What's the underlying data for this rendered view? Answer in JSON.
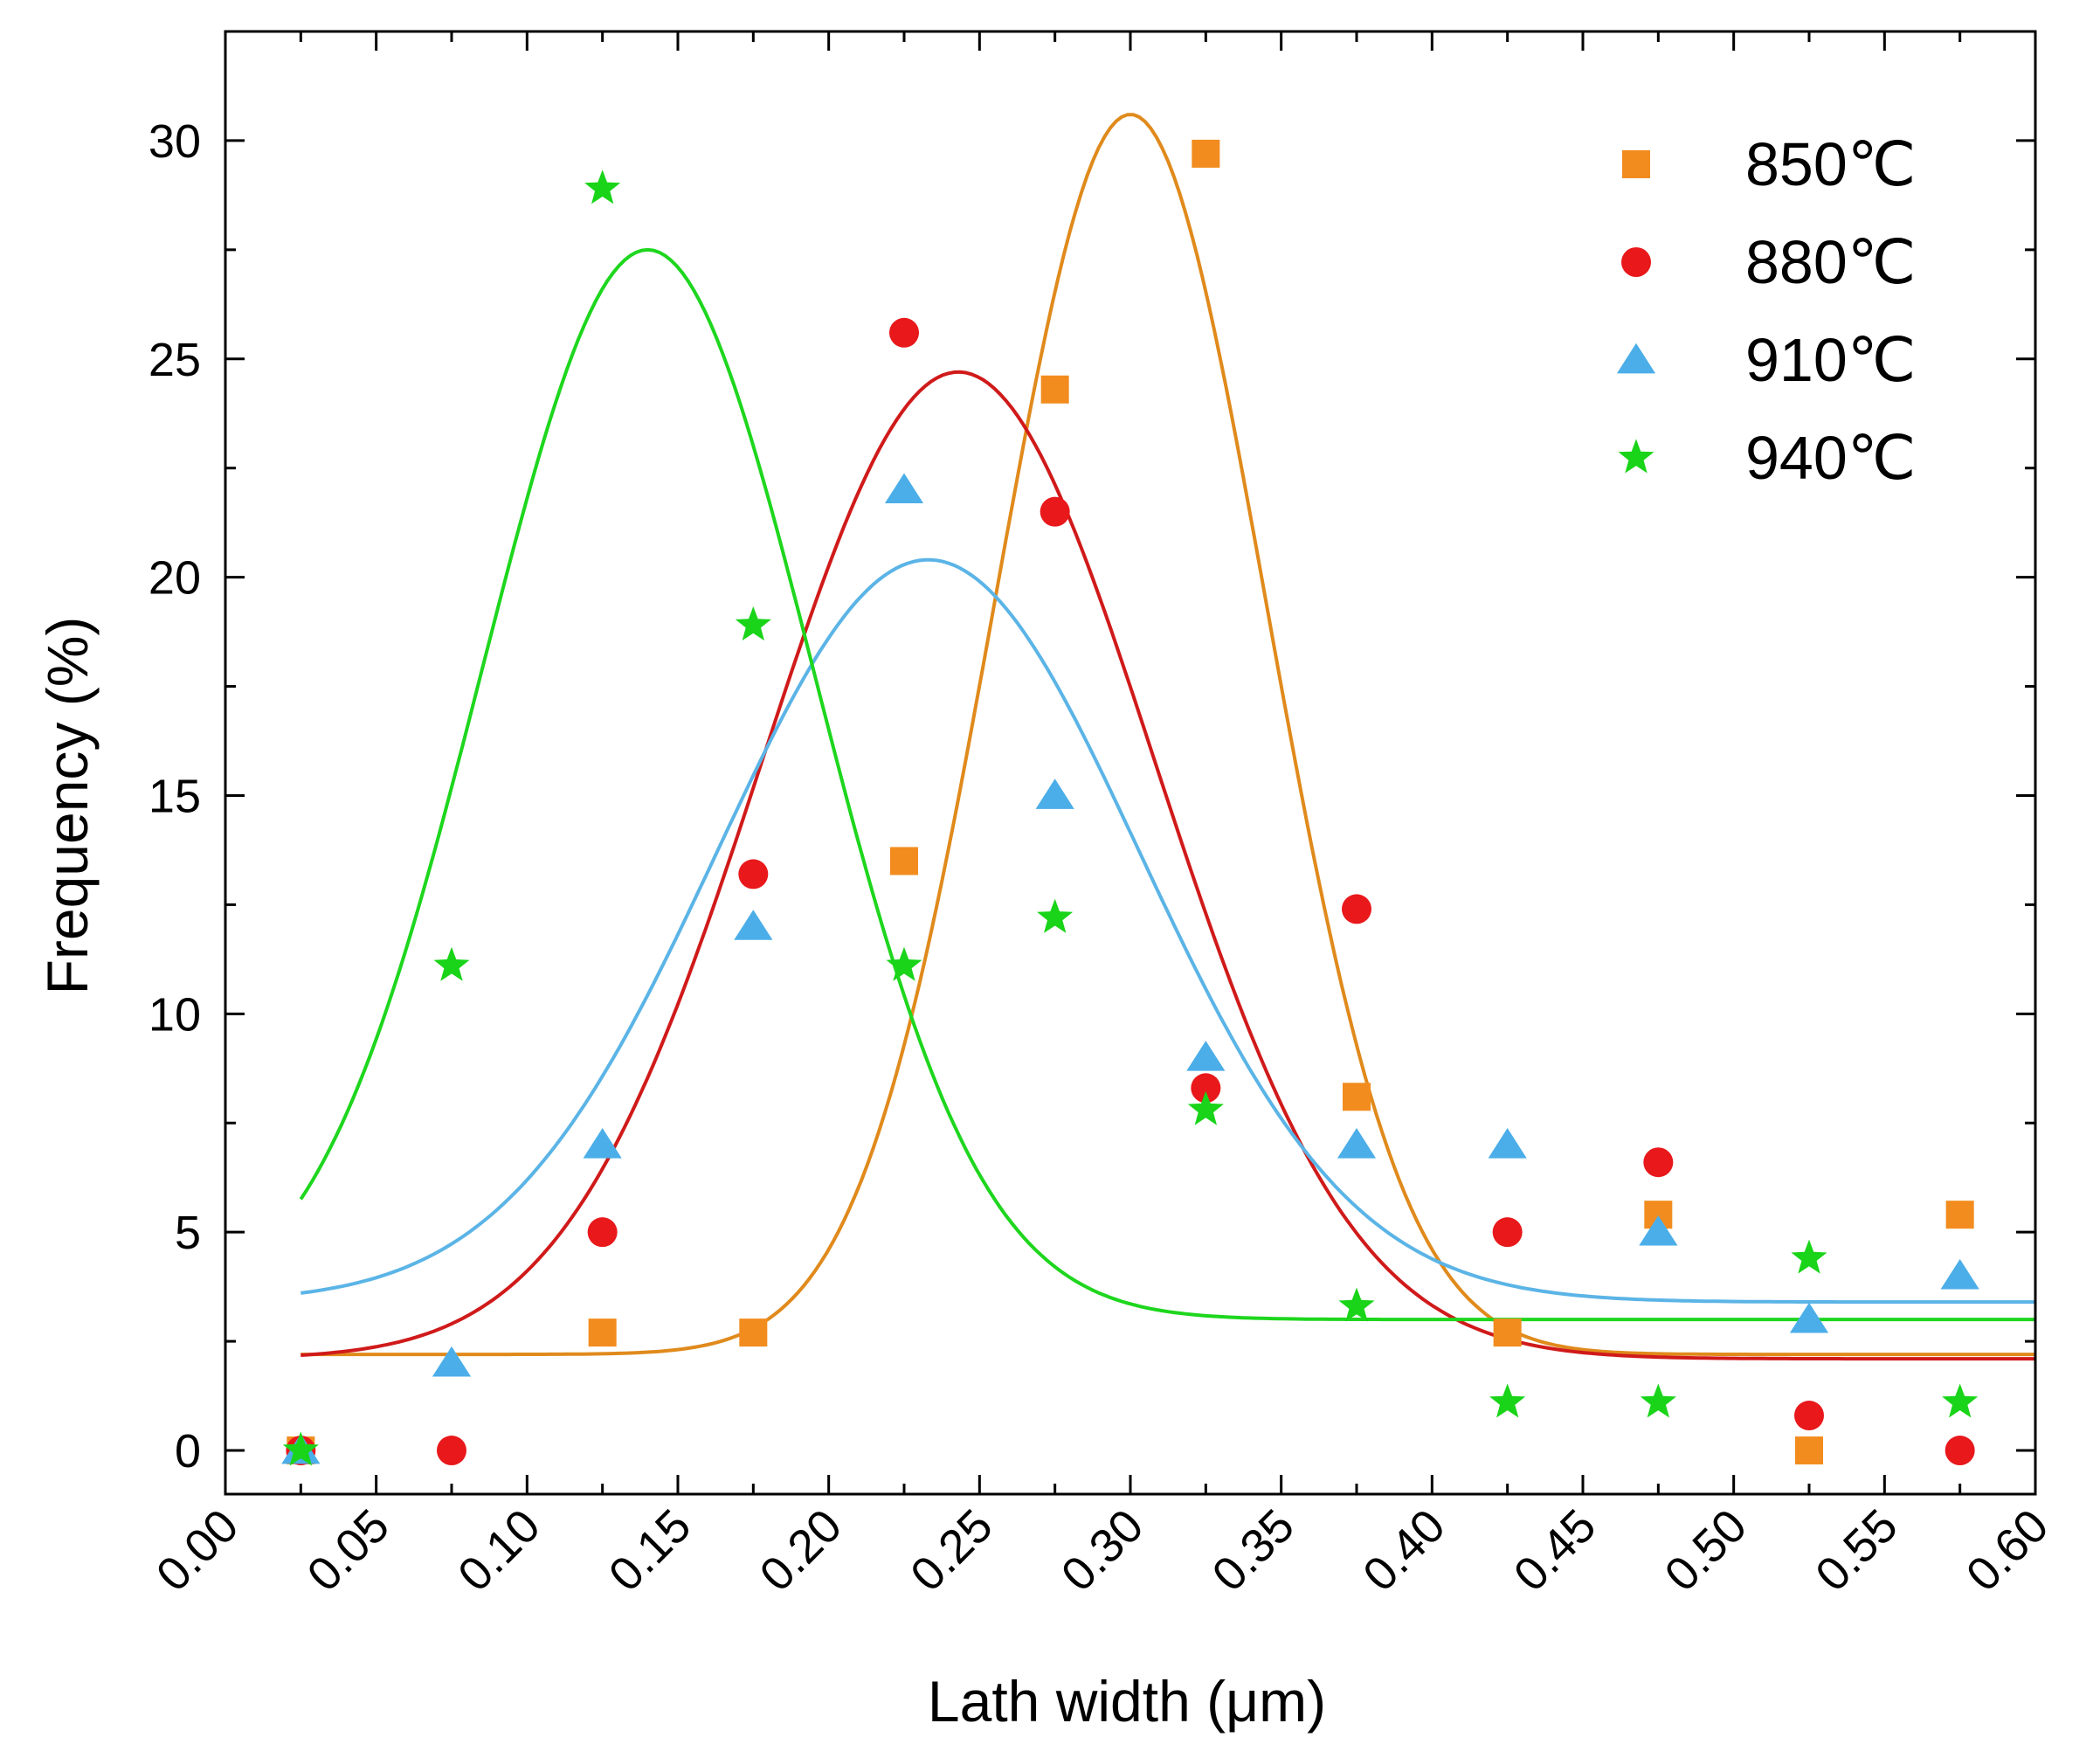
{
  "chart_data": {
    "type": "scatter",
    "title": "",
    "xlabel": "Lath width (μm)",
    "ylabel": "Frequency (%)",
    "xlim": [
      0.0,
      0.6
    ],
    "ylim": [
      -1,
      32.5
    ],
    "xticks": [
      0.0,
      0.05,
      0.1,
      0.15,
      0.2,
      0.25,
      0.3,
      0.35,
      0.4,
      0.45,
      0.5,
      0.55,
      0.6
    ],
    "xtick_labels": [
      "0.00",
      "0.05",
      "0.10",
      "0.15",
      "0.20",
      "0.25",
      "0.30",
      "0.35",
      "0.40",
      "0.45",
      "0.50",
      "0.55",
      "0.60"
    ],
    "yticks": [
      0,
      5,
      10,
      15,
      20,
      25,
      30
    ],
    "ytick_labels": [
      "0",
      "5",
      "10",
      "15",
      "20",
      "25",
      "30"
    ],
    "legend_position": "top-right",
    "x": [
      0.025,
      0.075,
      0.125,
      0.175,
      0.225,
      0.275,
      0.325,
      0.375,
      0.425,
      0.475,
      0.525,
      0.575
    ],
    "series": [
      {
        "name": "850℃",
        "marker": "square",
        "color": "#F28C1E",
        "values": [
          0,
          null,
          2.7,
          2.7,
          13.5,
          24.3,
          29.7,
          8.1,
          2.7,
          5.4,
          0,
          5.4
        ],
        "fit": {
          "type": "gaussian",
          "y0": 2.2,
          "xc": 0.3,
          "w": 0.09,
          "A": 28.4
        }
      },
      {
        "name": "880℃",
        "marker": "circle",
        "color": "#E8181B",
        "values": [
          0,
          0,
          5.0,
          13.2,
          25.6,
          21.5,
          8.3,
          12.4,
          5.0,
          6.6,
          0.8,
          0
        ],
        "fit": {
          "type": "gaussian",
          "y0": 2.1,
          "xc": 0.243,
          "w": 0.13,
          "A": 22.6
        }
      },
      {
        "name": "910℃",
        "marker": "triangle",
        "color": "#4BAEE8",
        "values": [
          0,
          2.0,
          7.0,
          12.0,
          22.0,
          15.0,
          9.0,
          7.0,
          7.0,
          5.0,
          3.0,
          4.0
        ],
        "fit": {
          "type": "gaussian",
          "y0": 3.4,
          "xc": 0.233,
          "w": 0.14,
          "A": 17.0
        }
      },
      {
        "name": "940℃",
        "marker": "star",
        "color": "#19D419",
        "values": [
          0,
          11.1,
          28.9,
          18.9,
          11.1,
          12.2,
          7.8,
          3.3,
          1.1,
          1.1,
          4.4,
          1.1
        ],
        "fit": {
          "type": "gaussian",
          "y0": 3.0,
          "xc": 0.14,
          "w": 0.11,
          "A": 24.5
        }
      }
    ]
  }
}
